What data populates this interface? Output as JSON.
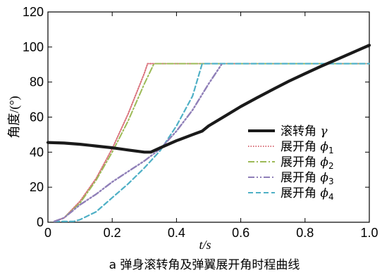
{
  "chart_data": {
    "type": "line",
    "xlabel": "t/s",
    "ylabel": "角度/(°)",
    "xlim": [
      0,
      1.0
    ],
    "ylim": [
      0,
      120
    ],
    "xticks": [
      0,
      0.2,
      0.4,
      0.6,
      0.8,
      1.0
    ],
    "xtick_labels": [
      "0",
      "0.2",
      "0.4",
      "0.6",
      "0.8",
      "1.0"
    ],
    "yticks": [
      0,
      20,
      40,
      60,
      80,
      100,
      120
    ],
    "ytick_labels": [
      "0",
      "20",
      "40",
      "60",
      "80",
      "100",
      "120"
    ],
    "grid": false,
    "legend_position": "center-right",
    "caption": "a 弹身滚转角及弹翼展开角时程曲线",
    "series": [
      {
        "name_text": "滚转角",
        "name_symbol": "γ",
        "name_sub": "",
        "color": "#1a1a1a",
        "style": "solid",
        "width": 4.2,
        "x": [
          0,
          0.05,
          0.1,
          0.15,
          0.2,
          0.25,
          0.3,
          0.32,
          0.35,
          0.4,
          0.45,
          0.48,
          0.5,
          0.55,
          0.6,
          0.65,
          0.7,
          0.75,
          0.8,
          0.85,
          0.9,
          0.95,
          1.0
        ],
        "y": [
          45.5,
          45.2,
          44.5,
          43.5,
          42.5,
          41.2,
          40.0,
          40.0,
          42.5,
          46.5,
          50.0,
          52.0,
          55.0,
          60.5,
          66.0,
          71.0,
          75.8,
          80.5,
          84.8,
          89.0,
          93.0,
          97.0,
          101.0
        ]
      },
      {
        "name_text": "展开角",
        "name_symbol": "ϕ",
        "name_sub": "1",
        "color": "#d9707a",
        "style": "dotted",
        "width": 2,
        "x": [
          0.02,
          0.05,
          0.1,
          0.15,
          0.2,
          0.25,
          0.3,
          0.31,
          0.35,
          0.5,
          0.7,
          1.0
        ],
        "y": [
          0.5,
          2.5,
          12,
          25,
          42,
          62,
          85,
          90.5,
          90.5,
          90.5,
          90.5,
          90.5
        ]
      },
      {
        "name_text": "展开角",
        "name_symbol": "ϕ",
        "name_sub": "2",
        "color": "#9cba56",
        "style": "dashdot",
        "width": 2,
        "x": [
          0.02,
          0.05,
          0.1,
          0.15,
          0.2,
          0.25,
          0.3,
          0.33,
          0.4,
          0.6,
          0.8,
          1.0
        ],
        "y": [
          0.5,
          2.5,
          11,
          24,
          40,
          58,
          79,
          90.5,
          90.5,
          90.5,
          90.5,
          90.5
        ]
      },
      {
        "name_text": "展开角",
        "name_symbol": "ϕ",
        "name_sub": "3",
        "color": "#8f7fb8",
        "style": "dashdotdot",
        "width": 2.4,
        "x": [
          0.02,
          0.05,
          0.1,
          0.15,
          0.2,
          0.25,
          0.3,
          0.35,
          0.4,
          0.45,
          0.5,
          0.54
        ],
        "y": [
          0.5,
          2.5,
          10,
          16,
          23,
          29,
          35,
          42,
          52,
          64,
          79,
          90
        ]
      },
      {
        "name_text": "展开角",
        "name_symbol": "ϕ",
        "name_sub": "4",
        "color": "#4fb0c6",
        "style": "dashed",
        "width": 2.2,
        "x": [
          0.02,
          0.05,
          0.08,
          0.1,
          0.15,
          0.2,
          0.25,
          0.3,
          0.35,
          0.4,
          0.45,
          0.48,
          0.55,
          0.7,
          0.85,
          1.0
        ],
        "y": [
          0.5,
          0.5,
          0.5,
          1.5,
          6,
          14,
          22,
          31,
          41,
          55,
          72,
          90.5,
          90.5,
          90.5,
          90.5,
          90.5
        ]
      }
    ]
  }
}
